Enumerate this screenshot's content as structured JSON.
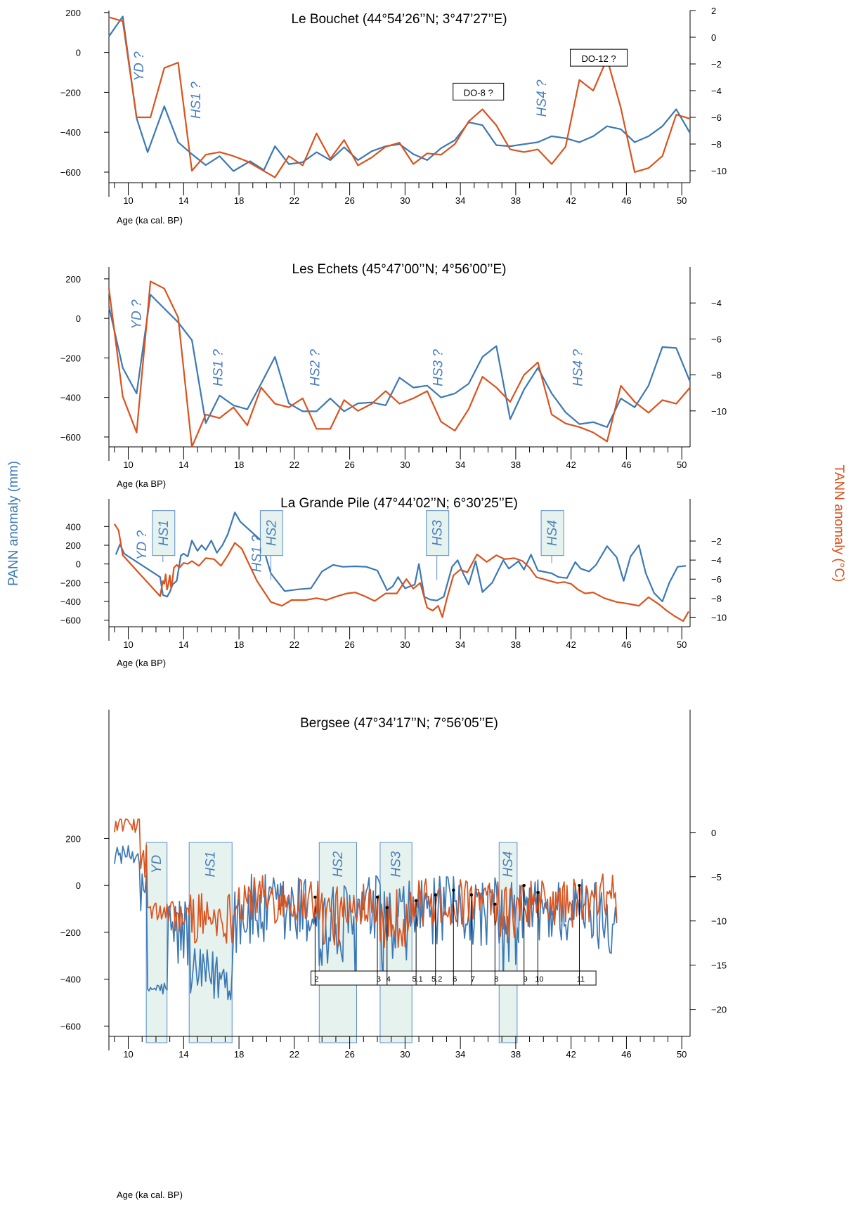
{
  "left_axis_label": "PANN anomaly (mm)",
  "right_axis_label": "TANN anomaly (°C)",
  "colors": {
    "pann": "#3b78b4",
    "tann": "#d9531e",
    "box_fill": "#e6f2ee",
    "box_stroke": "#5a8ccf",
    "annotation": "#4a7fbc"
  },
  "chart_data": [
    {
      "type": "line",
      "title": "Le Bouchet (44°54’26’’N; 3°47’27’’E)",
      "xlabel": "Age (ka cal. BP)",
      "xlim": [
        8.6,
        50.6
      ],
      "x_ticks": [
        10,
        14,
        18,
        22,
        26,
        30,
        34,
        38,
        42,
        46,
        50
      ],
      "ylim_left": [
        -660,
        210
      ],
      "left_ticks": [
        200,
        0,
        -200,
        -400,
        -600
      ],
      "ylim_right": [
        -11,
        2
      ],
      "right_ticks": [
        2,
        0,
        -2,
        -4,
        -6,
        -8,
        -10
      ],
      "series": [
        {
          "axis": "left",
          "x": [
            8.6,
            9.6,
            10.6,
            11.4,
            12.6,
            13.6,
            14.6,
            15.6,
            16.6,
            17.6,
            18.8,
            19.8,
            20.6,
            21.6,
            22.6,
            23.6,
            24.6,
            25.6,
            26.6,
            27.6,
            28.6,
            29.6,
            30.6,
            31.6,
            32.6,
            33.6,
            34.6,
            35.6,
            36.6,
            37.6,
            38.6,
            39.6,
            40.6,
            41.6,
            42.6,
            43.6,
            44.6,
            45.6,
            46.6,
            47.6,
            48.6,
            49.6,
            50.6
          ],
          "y": [
            80,
            180,
            -330,
            -500,
            -270,
            -450,
            -510,
            -565,
            -520,
            -595,
            -545,
            -590,
            -470,
            -560,
            -550,
            -500,
            -540,
            -475,
            -540,
            -495,
            -470,
            -460,
            -510,
            -540,
            -480,
            -440,
            -350,
            -365,
            -465,
            -470,
            -460,
            -450,
            -420,
            -430,
            -450,
            -420,
            -370,
            -385,
            -450,
            -420,
            -370,
            -285,
            -405
          ]
        },
        {
          "axis": "right",
          "x": [
            8.6,
            9.6,
            10.6,
            11.6,
            12.6,
            13.6,
            14.6,
            15.6,
            16.6,
            17.6,
            18.6,
            19.6,
            20.6,
            21.6,
            22.6,
            23.6,
            24.6,
            25.6,
            26.6,
            27.6,
            28.6,
            29.6,
            30.6,
            31.6,
            32.6,
            33.6,
            34.6,
            35.6,
            36.6,
            37.6,
            38.6,
            39.6,
            40.6,
            41.6,
            42.6,
            43.6,
            44.6,
            45.6,
            46.6,
            47.6,
            48.6,
            49.6,
            50.6
          ],
          "y": [
            1.5,
            1.2,
            -6,
            -6,
            -2.3,
            -1.9,
            -10,
            -8.8,
            -8.6,
            -8.9,
            -9.3,
            -9.9,
            -10.5,
            -8.9,
            -9.6,
            -7.2,
            -9.1,
            -7.7,
            -9.6,
            -9,
            -8.2,
            -7.9,
            -9.5,
            -8.7,
            -8.8,
            -8,
            -6.3,
            -5.4,
            -6.6,
            -8.4,
            -8.6,
            -8.4,
            -9.5,
            -8.2,
            -3.2,
            -4,
            -1.6,
            -5.3,
            -10.1,
            -9.8,
            -8.9,
            -5.8,
            -6.1
          ]
        }
      ],
      "annotations": [
        {
          "text": "YD ?",
          "x": 11.1,
          "axis": "left",
          "y": -70,
          "style": "italic"
        },
        {
          "text": "HS1 ?",
          "x": 15.2,
          "axis": "left",
          "y": -240,
          "style": "italic"
        },
        {
          "text": "HS4 ?",
          "x": 40.2,
          "axis": "left",
          "y": -230,
          "style": "italic"
        },
        {
          "text": "DO-8 ?",
          "x": 35.3,
          "axis": "left",
          "y": -200,
          "style": "box"
        },
        {
          "text": "DO-12 ?",
          "x": 44.0,
          "axis": "left",
          "y": -30,
          "style": "box"
        }
      ],
      "grid": false
    },
    {
      "type": "line",
      "title": "Les Echets (45°47’00’’N; 4°56’00’’E)",
      "xlabel": "Age (ka BP)",
      "xlim": [
        8.6,
        50.6
      ],
      "x_ticks": [
        10,
        14,
        18,
        22,
        26,
        30,
        34,
        38,
        42,
        46,
        50
      ],
      "ylim_left": [
        -650,
        260
      ],
      "left_ticks": [
        200,
        0,
        -200,
        -400,
        -600
      ],
      "ylim_right": [
        -12,
        -2
      ],
      "right_ticks": [
        -4,
        -6,
        -8,
        -10
      ],
      "series": [
        {
          "axis": "left",
          "x": [
            8.6,
            9.6,
            10.6,
            11.6,
            12.6,
            13.6,
            14.6,
            15.6,
            16.6,
            17.6,
            18.6,
            19.6,
            20.6,
            21.6,
            22.6,
            23.6,
            24.6,
            25.6,
            26.6,
            27.6,
            28.6,
            29.6,
            30.6,
            31.6,
            32.6,
            33.6,
            34.6,
            35.6,
            36.6,
            37.6,
            38.6,
            39.6,
            40.6,
            41.6,
            42.6,
            43.6,
            44.6,
            45.6,
            46.6,
            47.6,
            48.6,
            49.6,
            50.6
          ],
          "y": [
            60,
            -250,
            -380,
            120,
            50,
            -20,
            -110,
            -530,
            -390,
            -440,
            -460,
            -330,
            -195,
            -430,
            -470,
            -470,
            -405,
            -470,
            -430,
            -425,
            -440,
            -300,
            -350,
            -340,
            -400,
            -380,
            -330,
            -195,
            -140,
            -510,
            -360,
            -250,
            -380,
            -475,
            -535,
            -525,
            -550,
            -405,
            -450,
            -340,
            -145,
            -150,
            -320
          ]
        },
        {
          "axis": "right",
          "x": [
            8.6,
            9.6,
            10.6,
            11.6,
            12.6,
            13.6,
            14.6,
            15.6,
            16.6,
            17.6,
            18.6,
            19.6,
            20.6,
            21.6,
            22.6,
            23.6,
            24.6,
            25.6,
            26.6,
            27.6,
            28.6,
            29.6,
            30.6,
            31.6,
            32.6,
            33.6,
            34.6,
            35.6,
            36.6,
            37.6,
            38.6,
            39.6,
            40.6,
            41.6,
            42.6,
            43.6,
            44.6,
            45.6,
            46.6,
            47.6,
            48.6,
            49.6,
            50.6
          ],
          "y": [
            -3.2,
            -9.2,
            -11.2,
            -2.8,
            -3.2,
            -4.8,
            -12,
            -10.2,
            -10.4,
            -9.8,
            -10.8,
            -8.7,
            -9.6,
            -9.8,
            -9.3,
            -11,
            -11,
            -9.4,
            -10,
            -9.6,
            -8.9,
            -9.6,
            -9.3,
            -8.9,
            -10.6,
            -11.1,
            -9.9,
            -8.1,
            -8.7,
            -9.5,
            -8,
            -7.3,
            -10.2,
            -10.7,
            -10.9,
            -11.2,
            -11.7,
            -8.6,
            -9.5,
            -10.1,
            -9.4,
            -9.6,
            -8.7
          ]
        }
      ],
      "annotations": [
        {
          "text": "YD ?",
          "x": 10.9,
          "axis": "left",
          "y": 20,
          "style": "italic"
        },
        {
          "text": "HS1 ?",
          "x": 16.8,
          "axis": "left",
          "y": -250,
          "style": "italic"
        },
        {
          "text": "HS2 ?",
          "x": 23.8,
          "axis": "left",
          "y": -250,
          "style": "italic"
        },
        {
          "text": "HS3 ?",
          "x": 32.7,
          "axis": "left",
          "y": -250,
          "style": "italic"
        },
        {
          "text": "HS4 ?",
          "x": 42.8,
          "axis": "left",
          "y": -250,
          "style": "italic"
        }
      ],
      "grid": false
    },
    {
      "type": "line",
      "title": "La Grande Pile (47°44’02’’N; 6°30’25’’E)",
      "xlabel": "Age (ka BP)",
      "xlim": [
        8.6,
        50.6
      ],
      "x_ticks": [
        10,
        14,
        18,
        22,
        26,
        30,
        34,
        38,
        42,
        46,
        50
      ],
      "ylim_left": [
        -670,
        560
      ],
      "left_ticks": [
        400,
        200,
        0,
        -200,
        -400,
        -600
      ],
      "ylim_right": [
        -11,
        1.1
      ],
      "right_ticks": [
        -2,
        -4,
        -6,
        -8,
        -10
      ],
      "series": [
        {
          "axis": "left",
          "x": [
            9.1,
            9.4,
            9.7,
            12.3,
            12.5,
            12.8,
            13.0,
            13.2,
            13.5,
            13.8,
            14.0,
            14.3,
            14.6,
            15.0,
            15.3,
            15.6,
            16.0,
            16.4,
            16.8,
            17.2,
            17.7,
            18.1,
            19.6,
            20.3,
            21.3,
            22.3,
            23.2,
            24.0,
            24.8,
            25.5,
            26.4,
            27.2,
            28.0,
            28.7,
            29.1,
            29.5,
            30.0,
            30.7,
            31.0,
            31.4,
            31.8,
            32.3,
            32.8,
            33.4,
            33.8,
            34.2,
            34.6,
            35.1,
            35.6,
            36.3,
            37.1,
            37.5,
            38.2,
            38.6,
            39.1,
            39.6,
            40.6,
            41.1,
            41.7,
            42.3,
            42.7,
            43.3,
            43.8,
            44.6,
            45.3,
            45.8,
            46.3,
            46.9,
            47.4,
            48.0,
            48.6,
            49.1,
            49.7,
            50.3
          ],
          "y": [
            100,
            210,
            110,
            -140,
            -330,
            -350,
            -300,
            -220,
            -180,
            90,
            110,
            80,
            250,
            140,
            200,
            150,
            250,
            120,
            200,
            320,
            550,
            450,
            250,
            -100,
            -290,
            -270,
            -260,
            -80,
            -10,
            -30,
            -25,
            -30,
            -70,
            -280,
            -240,
            -140,
            -260,
            -220,
            0,
            -350,
            -380,
            -390,
            -350,
            -30,
            40,
            -100,
            -220,
            30,
            -300,
            -200,
            40,
            -50,
            30,
            -60,
            100,
            -70,
            -100,
            -140,
            -150,
            20,
            -50,
            -80,
            -10,
            190,
            70,
            -180,
            80,
            200,
            -100,
            -310,
            -400,
            -200,
            -30,
            -20
          ]
        },
        {
          "axis": "right",
          "x": [
            9.0,
            9.3,
            9.6,
            12.3,
            12.4,
            12.5,
            12.6,
            12.7,
            12.8,
            12.9,
            13.0,
            13.1,
            13.2,
            13.3,
            13.5,
            13.7,
            14.0,
            14.3,
            14.6,
            15.1,
            15.6,
            16.2,
            16.7,
            17.2,
            17.7,
            18.2,
            19.3,
            20.3,
            21.1,
            21.8,
            22.8,
            23.6,
            24.3,
            25.1,
            25.8,
            26.4,
            27.1,
            27.8,
            28.6,
            29.4,
            30.1,
            30.6,
            31.1,
            31.6,
            32.0,
            32.4,
            32.7,
            33.0,
            33.5,
            34.0,
            34.5,
            35.2,
            35.9,
            36.6,
            37.2,
            37.9,
            38.5,
            39.0,
            39.5,
            40.0,
            40.5,
            41.0,
            41.5,
            42.0,
            42.5,
            43.0,
            43.6,
            44.4,
            45.3,
            46.2,
            46.9,
            47.6,
            48.4,
            48.9,
            49.5,
            50.1,
            50.5
          ],
          "y": [
            -0.2,
            -0.9,
            -3.5,
            -7.8,
            -7.0,
            -6.2,
            -6.5,
            -5.5,
            -7.1,
            -6.5,
            -5.6,
            -7.0,
            -6.0,
            -4.8,
            -4.5,
            -4.8,
            -4.3,
            -4.4,
            -4.1,
            -4.6,
            -3.8,
            -3.9,
            -4.6,
            -3.5,
            -2.2,
            -2.8,
            -6.2,
            -8.4,
            -8.8,
            -8.2,
            -8.2,
            -8.0,
            -8.2,
            -7.8,
            -7.5,
            -7.4,
            -7.8,
            -8.3,
            -7.5,
            -7.5,
            -6.0,
            -7.0,
            -6.4,
            -9.0,
            -9.3,
            -8.8,
            -10.0,
            -8.2,
            -5.6,
            -5.0,
            -5.3,
            -3.4,
            -4.2,
            -3.5,
            -3.9,
            -3.8,
            -4.1,
            -4.8,
            -5.8,
            -6.0,
            -6.2,
            -6.4,
            -6.3,
            -6.5,
            -7.1,
            -7.5,
            -7.4,
            -8.0,
            -8.4,
            -8.6,
            -8.8,
            -7.9,
            -8.7,
            -9.3,
            -9.9,
            -10.4,
            -9.4
          ]
        }
      ],
      "annotations": [
        {
          "text": "HS1",
          "x": 12.5,
          "axis": "left",
          "y": 390,
          "style": "box-vertical",
          "line_to": 20
        },
        {
          "text": "HS2",
          "x": 20.3,
          "axis": "left",
          "y": 390,
          "style": "box-vertical",
          "line_to": -170
        },
        {
          "text": "HS3",
          "x": 32.3,
          "axis": "left",
          "y": 390,
          "style": "box-vertical",
          "line_to": -170
        },
        {
          "text": "HS4",
          "x": 40.6,
          "axis": "left",
          "y": 390,
          "style": "box-vertical",
          "line_to": 10
        },
        {
          "text": "YD ?",
          "x": 11.3,
          "axis": "left",
          "y": 200,
          "style": "italic"
        },
        {
          "text": "HS1 ?",
          "x": 19.6,
          "axis": "left",
          "y": 110,
          "style": "italic"
        }
      ],
      "grid": false
    },
    {
      "type": "line",
      "title": "Bergsee (47°34’17’’N; 7°56’05’’E)",
      "xlabel": "Age (ka cal. BP)",
      "xlim": [
        8.6,
        50.6
      ],
      "x_ticks": [
        10,
        14,
        18,
        22,
        26,
        30,
        34,
        38,
        42,
        46,
        50
      ],
      "ylim_left": [
        -680,
        660
      ],
      "left_ticks": [
        200,
        0,
        -200,
        -400,
        -600
      ],
      "ylim_right": [
        -24,
        11.5
      ],
      "right_ticks": [
        0,
        -5,
        -10,
        -15,
        -20
      ],
      "shaded_periods": [
        {
          "label": "YD",
          "from": 11.3,
          "to": 12.8
        },
        {
          "label": "HS1",
          "from": 14.4,
          "to": 17.5
        },
        {
          "label": "HS2",
          "from": 23.8,
          "to": 26.5
        },
        {
          "label": "HS3",
          "from": 28.2,
          "to": 30.5
        },
        {
          "label": "HS4",
          "from": 36.8,
          "to": 38.1
        }
      ],
      "events": [
        {
          "label": "2",
          "x": 23.5,
          "y": -50,
          "label_x": 23.5
        },
        {
          "label": "3",
          "x": 28.0,
          "y": -50,
          "label_x": 28.0
        },
        {
          "label": "4",
          "x": 28.7,
          "y": -95,
          "label_x": 28.7
        },
        {
          "label": "5.1",
          "x": 30.8,
          "y": -65,
          "label_x": 30.8
        },
        {
          "label": "5.2",
          "x": 32.2,
          "y": -40,
          "label_x": 32.2
        },
        {
          "label": "6",
          "x": 33.5,
          "y": -20,
          "label_x": 33.5
        },
        {
          "label": "7",
          "x": 34.8,
          "y": -40,
          "label_x": 34.8
        },
        {
          "label": "8",
          "x": 36.5,
          "y": -80,
          "label_x": 36.5
        },
        {
          "label": "9",
          "x": 38.6,
          "y": 0,
          "label_x": 38.6
        },
        {
          "label": "10",
          "x": 39.6,
          "y": -30,
          "label_x": 39.6
        },
        {
          "label": "11",
          "x": 42.6,
          "y": 0,
          "label_x": 42.6
        }
      ],
      "series_generated": "pann_tann_highres",
      "grid": false
    }
  ]
}
